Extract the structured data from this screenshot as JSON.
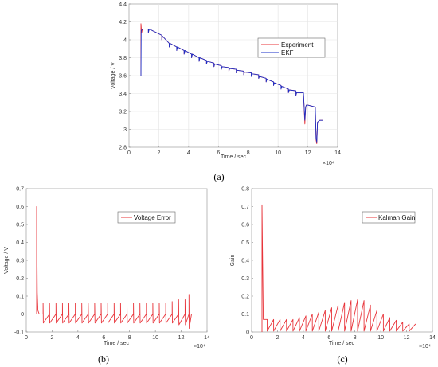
{
  "chart_data": [
    {
      "type": "line",
      "panel_label": "(a)",
      "xlabel": "Time / sec",
      "ylabel": "Voltage / V",
      "x_multiplier_label": "×10⁴",
      "xlim": [
        0,
        14
      ],
      "ylim": [
        2.8,
        4.4
      ],
      "xticks": [
        0,
        2,
        4,
        6,
        8,
        10,
        12,
        14
      ],
      "yticks": [
        2.8,
        3,
        3.2,
        3.4,
        3.6,
        3.8,
        4,
        4.2,
        4.4
      ],
      "grid": true,
      "legend_position": "right",
      "colors": {
        "Experiment": "#e8343a",
        "EKF": "#1a2fc8"
      },
      "series": [
        {
          "name": "Experiment",
          "x": [
            0.8,
            0.8,
            0.85,
            0.9,
            1.3,
            1.3,
            1.35,
            2.2,
            2.2,
            2.25,
            2.7,
            2.7,
            2.75,
            3.2,
            3.2,
            3.25,
            3.7,
            3.7,
            3.75,
            4.2,
            4.2,
            4.25,
            4.7,
            4.7,
            4.75,
            5.2,
            5.2,
            5.25,
            5.7,
            5.7,
            5.75,
            6.2,
            6.2,
            6.25,
            6.7,
            6.7,
            6.75,
            7.2,
            7.2,
            7.25,
            7.7,
            7.7,
            7.75,
            8.2,
            8.2,
            8.25,
            8.7,
            8.7,
            8.75,
            9.2,
            9.2,
            9.25,
            9.7,
            9.7,
            9.75,
            10.2,
            10.2,
            10.25,
            10.7,
            10.7,
            10.75,
            11.2,
            11.2,
            11.25,
            11.7,
            11.8,
            11.85,
            11.9,
            12.0,
            12.5,
            12.55,
            12.6,
            12.65,
            12.8,
            13.0
          ],
          "y": [
            3.6,
            4.18,
            4.08,
            4.12,
            4.12,
            4.08,
            4.12,
            4.05,
            4.0,
            4.04,
            3.96,
            3.92,
            3.96,
            3.92,
            3.88,
            3.92,
            3.88,
            3.84,
            3.88,
            3.84,
            3.8,
            3.84,
            3.8,
            3.76,
            3.8,
            3.77,
            3.73,
            3.76,
            3.74,
            3.7,
            3.73,
            3.71,
            3.67,
            3.7,
            3.69,
            3.65,
            3.68,
            3.67,
            3.63,
            3.66,
            3.65,
            3.61,
            3.64,
            3.63,
            3.59,
            3.62,
            3.61,
            3.57,
            3.59,
            3.57,
            3.53,
            3.56,
            3.53,
            3.49,
            3.52,
            3.49,
            3.45,
            3.48,
            3.45,
            3.41,
            3.44,
            3.43,
            3.38,
            3.41,
            3.41,
            3.06,
            3.25,
            3.27,
            3.27,
            3.25,
            2.88,
            2.84,
            3.08,
            3.1,
            3.1
          ]
        },
        {
          "name": "EKF",
          "x": [
            0.8,
            0.82,
            0.9,
            1.3,
            1.3,
            1.35,
            2.2,
            2.2,
            2.25,
            2.7,
            2.7,
            2.75,
            3.2,
            3.2,
            3.25,
            3.7,
            3.7,
            3.75,
            4.2,
            4.2,
            4.25,
            4.7,
            4.7,
            4.75,
            5.2,
            5.2,
            5.25,
            5.7,
            5.7,
            5.75,
            6.2,
            6.2,
            6.25,
            6.7,
            6.7,
            6.75,
            7.2,
            7.2,
            7.25,
            7.7,
            7.7,
            7.75,
            8.2,
            8.2,
            8.25,
            8.7,
            8.7,
            8.75,
            9.2,
            9.2,
            9.25,
            9.7,
            9.7,
            9.75,
            10.2,
            10.2,
            10.25,
            10.7,
            10.7,
            10.75,
            11.2,
            11.2,
            11.25,
            11.7,
            11.8,
            11.85,
            11.9,
            12.0,
            12.5,
            12.55,
            12.6,
            12.65,
            12.8,
            13.0
          ],
          "y": [
            3.6,
            4.1,
            4.12,
            4.12,
            4.08,
            4.12,
            4.05,
            4.0,
            4.04,
            3.96,
            3.92,
            3.96,
            3.92,
            3.88,
            3.92,
            3.88,
            3.84,
            3.88,
            3.84,
            3.8,
            3.84,
            3.8,
            3.76,
            3.8,
            3.77,
            3.73,
            3.76,
            3.74,
            3.7,
            3.73,
            3.71,
            3.67,
            3.7,
            3.69,
            3.65,
            3.68,
            3.67,
            3.63,
            3.66,
            3.65,
            3.61,
            3.64,
            3.63,
            3.59,
            3.62,
            3.61,
            3.57,
            3.59,
            3.57,
            3.53,
            3.56,
            3.53,
            3.49,
            3.52,
            3.49,
            3.45,
            3.48,
            3.45,
            3.41,
            3.44,
            3.43,
            3.38,
            3.41,
            3.41,
            3.1,
            3.25,
            3.27,
            3.27,
            3.25,
            2.9,
            2.86,
            3.08,
            3.1,
            3.1
          ]
        }
      ]
    },
    {
      "type": "line",
      "panel_label": "(b)",
      "xlabel": "Time / sec",
      "ylabel": "Voltage / V",
      "x_multiplier_label": "×10⁴",
      "xlim": [
        0,
        14
      ],
      "ylim": [
        -0.1,
        0.7
      ],
      "xticks": [
        0,
        2,
        4,
        6,
        8,
        10,
        12,
        14
      ],
      "yticks": [
        -0.1,
        0,
        0.1,
        0.2,
        0.3,
        0.4,
        0.5,
        0.6,
        0.7
      ],
      "grid": false,
      "legend_position": "top-right",
      "colors": {
        "Voltage Error": "#e8343a"
      },
      "series": [
        {
          "name": "Voltage Error",
          "x": [
            0.8,
            0.8,
            0.85,
            0.9,
            1.0,
            1.3,
            1.3,
            1.32,
            1.8,
            1.8,
            1.82,
            2.3,
            2.3,
            2.32,
            2.8,
            2.8,
            2.82,
            3.3,
            3.3,
            3.32,
            3.8,
            3.8,
            3.82,
            4.3,
            4.3,
            4.32,
            4.8,
            4.8,
            4.82,
            5.3,
            5.3,
            5.32,
            5.8,
            5.8,
            5.82,
            6.3,
            6.3,
            6.32,
            6.8,
            6.8,
            6.82,
            7.3,
            7.3,
            7.32,
            7.8,
            7.8,
            7.82,
            8.3,
            8.3,
            8.32,
            8.8,
            8.8,
            8.82,
            9.3,
            9.3,
            9.32,
            9.8,
            9.8,
            9.82,
            10.3,
            10.3,
            10.32,
            10.8,
            10.8,
            10.82,
            11.3,
            11.3,
            11.32,
            11.8,
            11.8,
            11.82,
            12.3,
            12.3,
            12.32,
            12.6,
            12.6,
            12.62,
            12.8
          ],
          "y": [
            0.0,
            0.6,
            0.12,
            0.02,
            0.0,
            0.0,
            0.06,
            -0.05,
            0.0,
            0.06,
            -0.05,
            0.0,
            0.06,
            -0.05,
            0.0,
            0.06,
            -0.05,
            0.0,
            0.06,
            -0.05,
            0.0,
            0.06,
            -0.05,
            0.0,
            0.06,
            -0.05,
            0.0,
            0.06,
            -0.05,
            0.0,
            0.06,
            -0.05,
            0.0,
            0.06,
            -0.05,
            0.0,
            0.06,
            -0.05,
            0.0,
            0.06,
            -0.05,
            0.0,
            0.06,
            -0.05,
            0.0,
            0.06,
            -0.05,
            0.0,
            0.06,
            -0.05,
            0.0,
            0.06,
            -0.05,
            0.0,
            0.06,
            -0.05,
            0.0,
            0.06,
            -0.05,
            0.0,
            0.06,
            -0.05,
            0.0,
            0.06,
            -0.05,
            0.0,
            0.07,
            -0.05,
            0.0,
            0.08,
            -0.06,
            0.0,
            0.08,
            -0.06,
            0.0,
            0.11,
            -0.08,
            0.0
          ]
        }
      ]
    },
    {
      "type": "line",
      "panel_label": "(c)",
      "xlabel": "Time / sec",
      "ylabel": "Gain",
      "x_multiplier_label": "×10⁴",
      "xlim": [
        0,
        14
      ],
      "ylim": [
        0,
        0.8
      ],
      "xticks": [
        0,
        2,
        4,
        6,
        8,
        10,
        12,
        14
      ],
      "yticks": [
        0,
        0.1,
        0.2,
        0.3,
        0.4,
        0.5,
        0.6,
        0.7,
        0.8
      ],
      "grid": false,
      "legend_position": "top-right",
      "colors": {
        "Kalman Gain": "#e8343a"
      },
      "series": [
        {
          "name": "Kalman Gain",
          "x": [
            0.8,
            0.8,
            0.9,
            1.2,
            1.2,
            1.7,
            1.7,
            2.2,
            2.2,
            2.7,
            2.7,
            3.2,
            3.2,
            3.7,
            3.7,
            4.2,
            4.2,
            4.7,
            4.7,
            5.2,
            5.2,
            5.7,
            5.7,
            6.2,
            6.2,
            6.7,
            6.7,
            7.2,
            7.2,
            7.7,
            7.7,
            8.2,
            8.2,
            8.7,
            8.7,
            9.2,
            9.2,
            9.7,
            9.7,
            10.2,
            10.2,
            10.7,
            10.7,
            11.2,
            11.2,
            11.7,
            11.7,
            12.2,
            12.2,
            12.7
          ],
          "y": [
            0.0,
            0.71,
            0.07,
            0.07,
            0.005,
            0.07,
            0.005,
            0.07,
            0.005,
            0.07,
            0.005,
            0.07,
            0.005,
            0.08,
            0.005,
            0.09,
            0.005,
            0.1,
            0.005,
            0.11,
            0.005,
            0.12,
            0.005,
            0.135,
            0.005,
            0.15,
            0.005,
            0.165,
            0.005,
            0.175,
            0.005,
            0.18,
            0.005,
            0.175,
            0.005,
            0.15,
            0.005,
            0.12,
            0.005,
            0.1,
            0.005,
            0.08,
            0.005,
            0.065,
            0.005,
            0.055,
            0.005,
            0.045,
            0.005,
            0.045
          ]
        }
      ]
    }
  ]
}
